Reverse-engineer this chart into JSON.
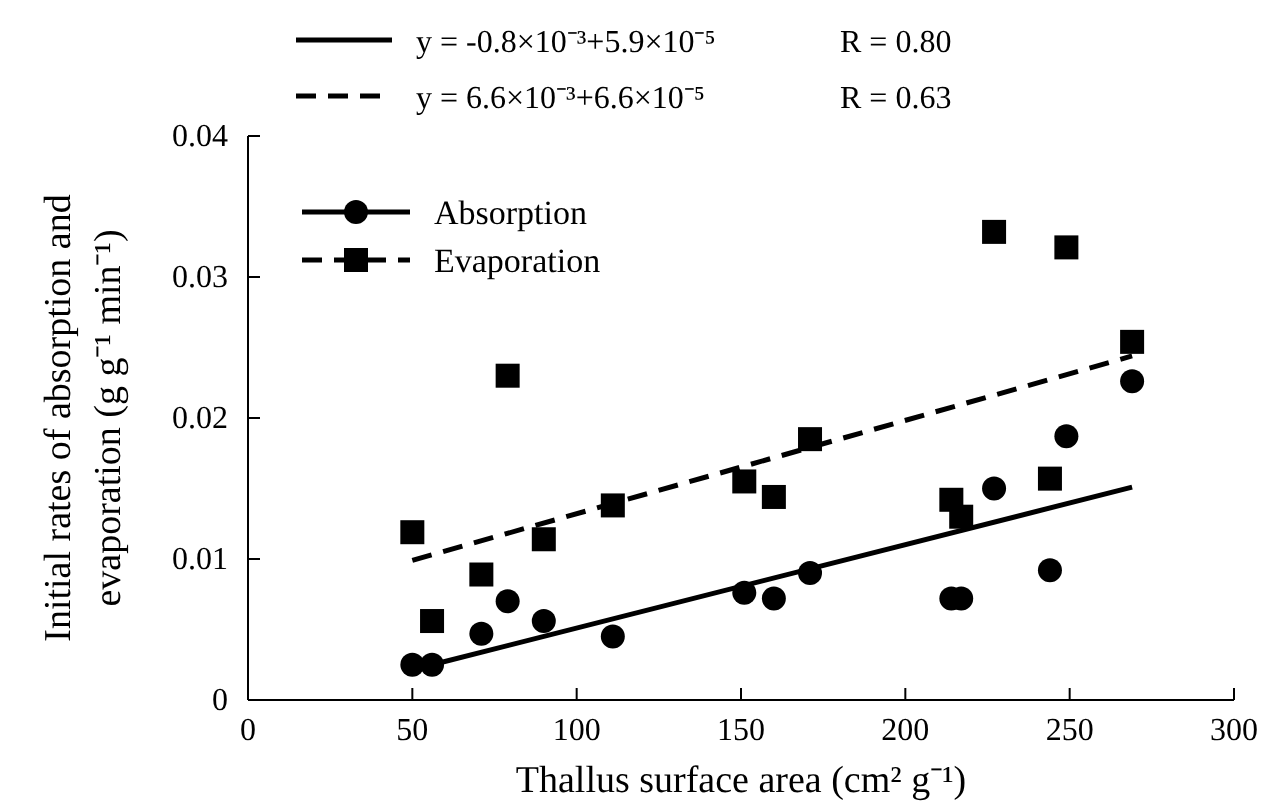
{
  "chart_data": {
    "type": "scatter",
    "xlabel": "Thallus surface area (cm² g⁻¹)",
    "ylabel": "Initial rates of absorption and\nevaporation (g g⁻¹ min⁻¹)",
    "xlim": [
      0,
      300
    ],
    "xticks": [
      0,
      50,
      100,
      150,
      200,
      250,
      300
    ],
    "ylim": [
      0,
      0.04
    ],
    "yticks": [
      0,
      0.01,
      0.02,
      0.03,
      0.04
    ],
    "grid": false,
    "legend": "top left",
    "series": [
      {
        "name": "Absorption",
        "marker": "circle",
        "line_style": "solid",
        "color": "#000000",
        "x": [
          50,
          56,
          71,
          79,
          90,
          111,
          151,
          160,
          171,
          214,
          217,
          227,
          244,
          249,
          269
        ],
        "values": [
          0.0025,
          0.0025,
          0.0047,
          0.007,
          0.0056,
          0.0045,
          0.0076,
          0.0072,
          0.009,
          0.0072,
          0.0072,
          0.015,
          0.0092,
          0.0187,
          0.0226
        ]
      },
      {
        "name": "Evaporation",
        "marker": "square",
        "line_style": "dashed",
        "color": "#000000",
        "x": [
          50,
          56,
          71,
          79,
          90,
          111,
          151,
          160,
          171,
          214,
          217,
          227,
          244,
          249,
          269
        ],
        "values": [
          0.0119,
          0.0056,
          0.0089,
          0.023,
          0.0114,
          0.0138,
          0.0155,
          0.0144,
          0.0185,
          0.0142,
          0.013,
          0.0332,
          0.0157,
          0.0321,
          0.0254
        ]
      },
      {
        "name": "y = -0.8×10⁻³+5.9×10⁻⁵",
        "type": "line",
        "line_style": "solid",
        "color": "#000000",
        "x": [
          56,
          269
        ],
        "values": [
          0.0025,
          0.0151
        ]
      },
      {
        "name": "y = 6.6×10⁻³+6.6×10⁻⁵",
        "type": "line",
        "line_style": "dashed",
        "color": "#000000",
        "x": [
          50,
          269
        ],
        "values": [
          0.0099,
          0.0244
        ]
      }
    ],
    "annotations": [
      "R = 0.80",
      "R = 0.63"
    ]
  }
}
